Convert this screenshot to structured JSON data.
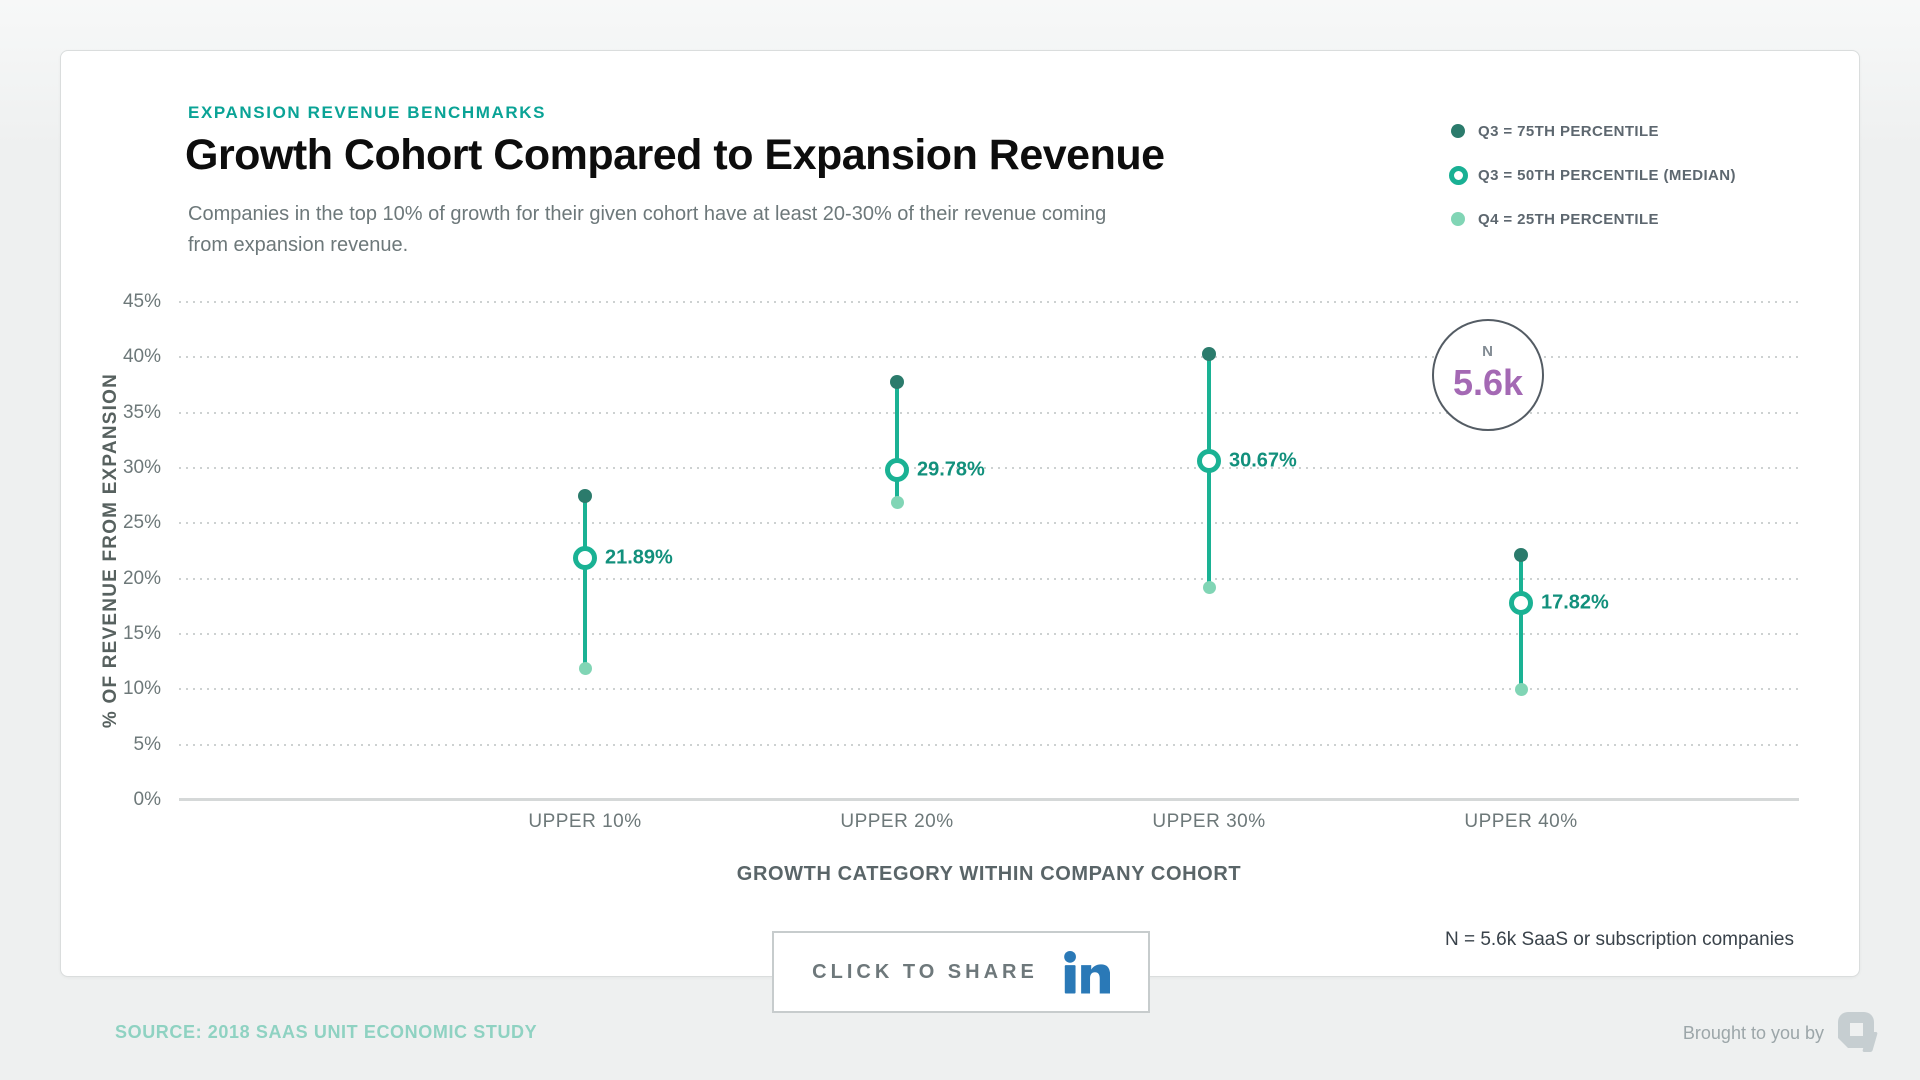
{
  "header": {
    "eyebrow": "EXPANSION REVENUE BENCHMARKS",
    "title": "Growth Cohort Compared to Expansion Revenue",
    "subtitle_line1": "Companies in the top 10% of growth for their given cohort have at least 20-30% of their revenue coming",
    "subtitle_line2": "from expansion revenue."
  },
  "legend": {
    "items": [
      {
        "label": "Q3 = 75TH PERCENTILE",
        "marker": "dot",
        "color": "#2b7b6c"
      },
      {
        "label": "Q3 = 50TH PERCENTILE (MEDIAN)",
        "marker": "ring",
        "color": "#19b094"
      },
      {
        "label": "Q4 = 25TH PERCENTILE",
        "marker": "dot",
        "color": "#81d5b5"
      }
    ]
  },
  "chart_data": {
    "type": "scatter",
    "subtype": "dot-range (quartile dumbbell)",
    "categories": [
      "UPPER 10%",
      "UPPER 20%",
      "UPPER 30%",
      "UPPER 40%"
    ],
    "series": [
      {
        "name": "Q3 = 75TH PERCENTILE",
        "values": [
          27.5,
          37.8,
          40.3,
          22.1
        ]
      },
      {
        "name": "Q3 = 50TH PERCENTILE (MEDIAN)",
        "values": [
          21.89,
          29.78,
          30.67,
          17.82
        ],
        "labels": [
          "21.89%",
          "29.78%",
          "30.67%",
          "17.82%"
        ]
      },
      {
        "name": "Q4 = 25TH PERCENTILE",
        "values": [
          11.9,
          26.9,
          19.2,
          10.0
        ]
      }
    ],
    "xlabel": "GROWTH CATEGORY WITHIN COMPANY COHORT",
    "ylabel": "% OF REVENUE FROM EXPANSION",
    "ylim": [
      0,
      45
    ],
    "ytick_step": 5,
    "ytick_labels": [
      "0%",
      "5%",
      "10%",
      "15%",
      "20%",
      "25%",
      "30%",
      "35%",
      "40%",
      "45%"
    ],
    "grid": "dotted horizontal",
    "legend_position": "top-right"
  },
  "annotation": {
    "n_label": "N",
    "n_value": "5.6k"
  },
  "notes": {
    "sample": "N = 5.6k SaaS or subscription companies"
  },
  "share": {
    "label": "CLICK TO SHARE",
    "icon": "linkedin-icon"
  },
  "footer": {
    "source": "SOURCE: 2018 SAAS UNIT ECONOMIC STUDY",
    "brought": "Brought to you by"
  },
  "colors": {
    "accent_teal": "#0aa396",
    "p75_dark_teal": "#2b7b6c",
    "median_teal": "#1ab294",
    "p25_mint": "#81d5b5",
    "value_label": "#12907c",
    "n_purple": "#a469b4",
    "linkedin_blue": "#2a79b7",
    "source_teal": "#8fd2c2"
  }
}
